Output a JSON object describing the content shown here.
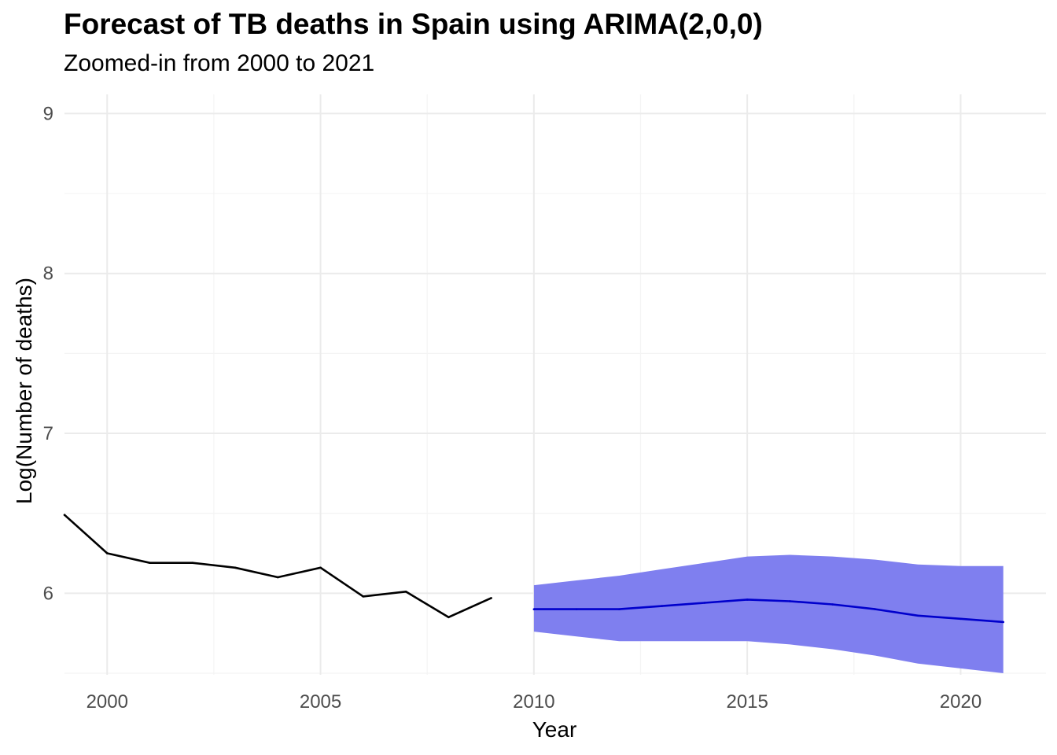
{
  "chart_data": {
    "type": "line",
    "title": "Forecast of TB deaths in Spain using ARIMA(2,0,0)",
    "subtitle": "Zoomed-in from 2000 to 2021",
    "xlabel": "Year",
    "ylabel": "Log(Number of deaths)",
    "xlim": [
      1999,
      2022
    ],
    "ylim": [
      5.49,
      9.12
    ],
    "x_ticks": [
      2000,
      2005,
      2010,
      2015,
      2020
    ],
    "y_ticks": [
      6,
      7,
      8,
      9
    ],
    "grid": true,
    "historical": {
      "x": [
        1999,
        2000,
        2001,
        2002,
        2003,
        2004,
        2005,
        2006,
        2007,
        2008,
        2009
      ],
      "values": [
        6.49,
        6.25,
        6.19,
        6.19,
        6.16,
        6.1,
        6.16,
        5.98,
        6.01,
        5.85,
        5.97
      ]
    },
    "forecast": {
      "x": [
        2010,
        2011,
        2012,
        2013,
        2014,
        2015,
        2016,
        2017,
        2018,
        2019,
        2020,
        2021
      ],
      "mean": [
        5.9,
        5.9,
        5.9,
        5.92,
        5.94,
        5.96,
        5.95,
        5.93,
        5.9,
        5.86,
        5.84,
        5.82
      ],
      "lower": [
        5.76,
        5.73,
        5.7,
        5.7,
        5.7,
        5.7,
        5.68,
        5.65,
        5.61,
        5.56,
        5.53,
        5.5
      ],
      "upper": [
        6.05,
        6.08,
        6.11,
        6.15,
        6.19,
        6.23,
        6.24,
        6.23,
        6.21,
        6.18,
        6.17,
        6.17
      ]
    },
    "colors": {
      "historical": "#000000",
      "forecast": "#0000cc",
      "interval": "#7f7fef",
      "grid_major": "#ebebeb",
      "grid_minor": "#f4f4f4"
    }
  }
}
